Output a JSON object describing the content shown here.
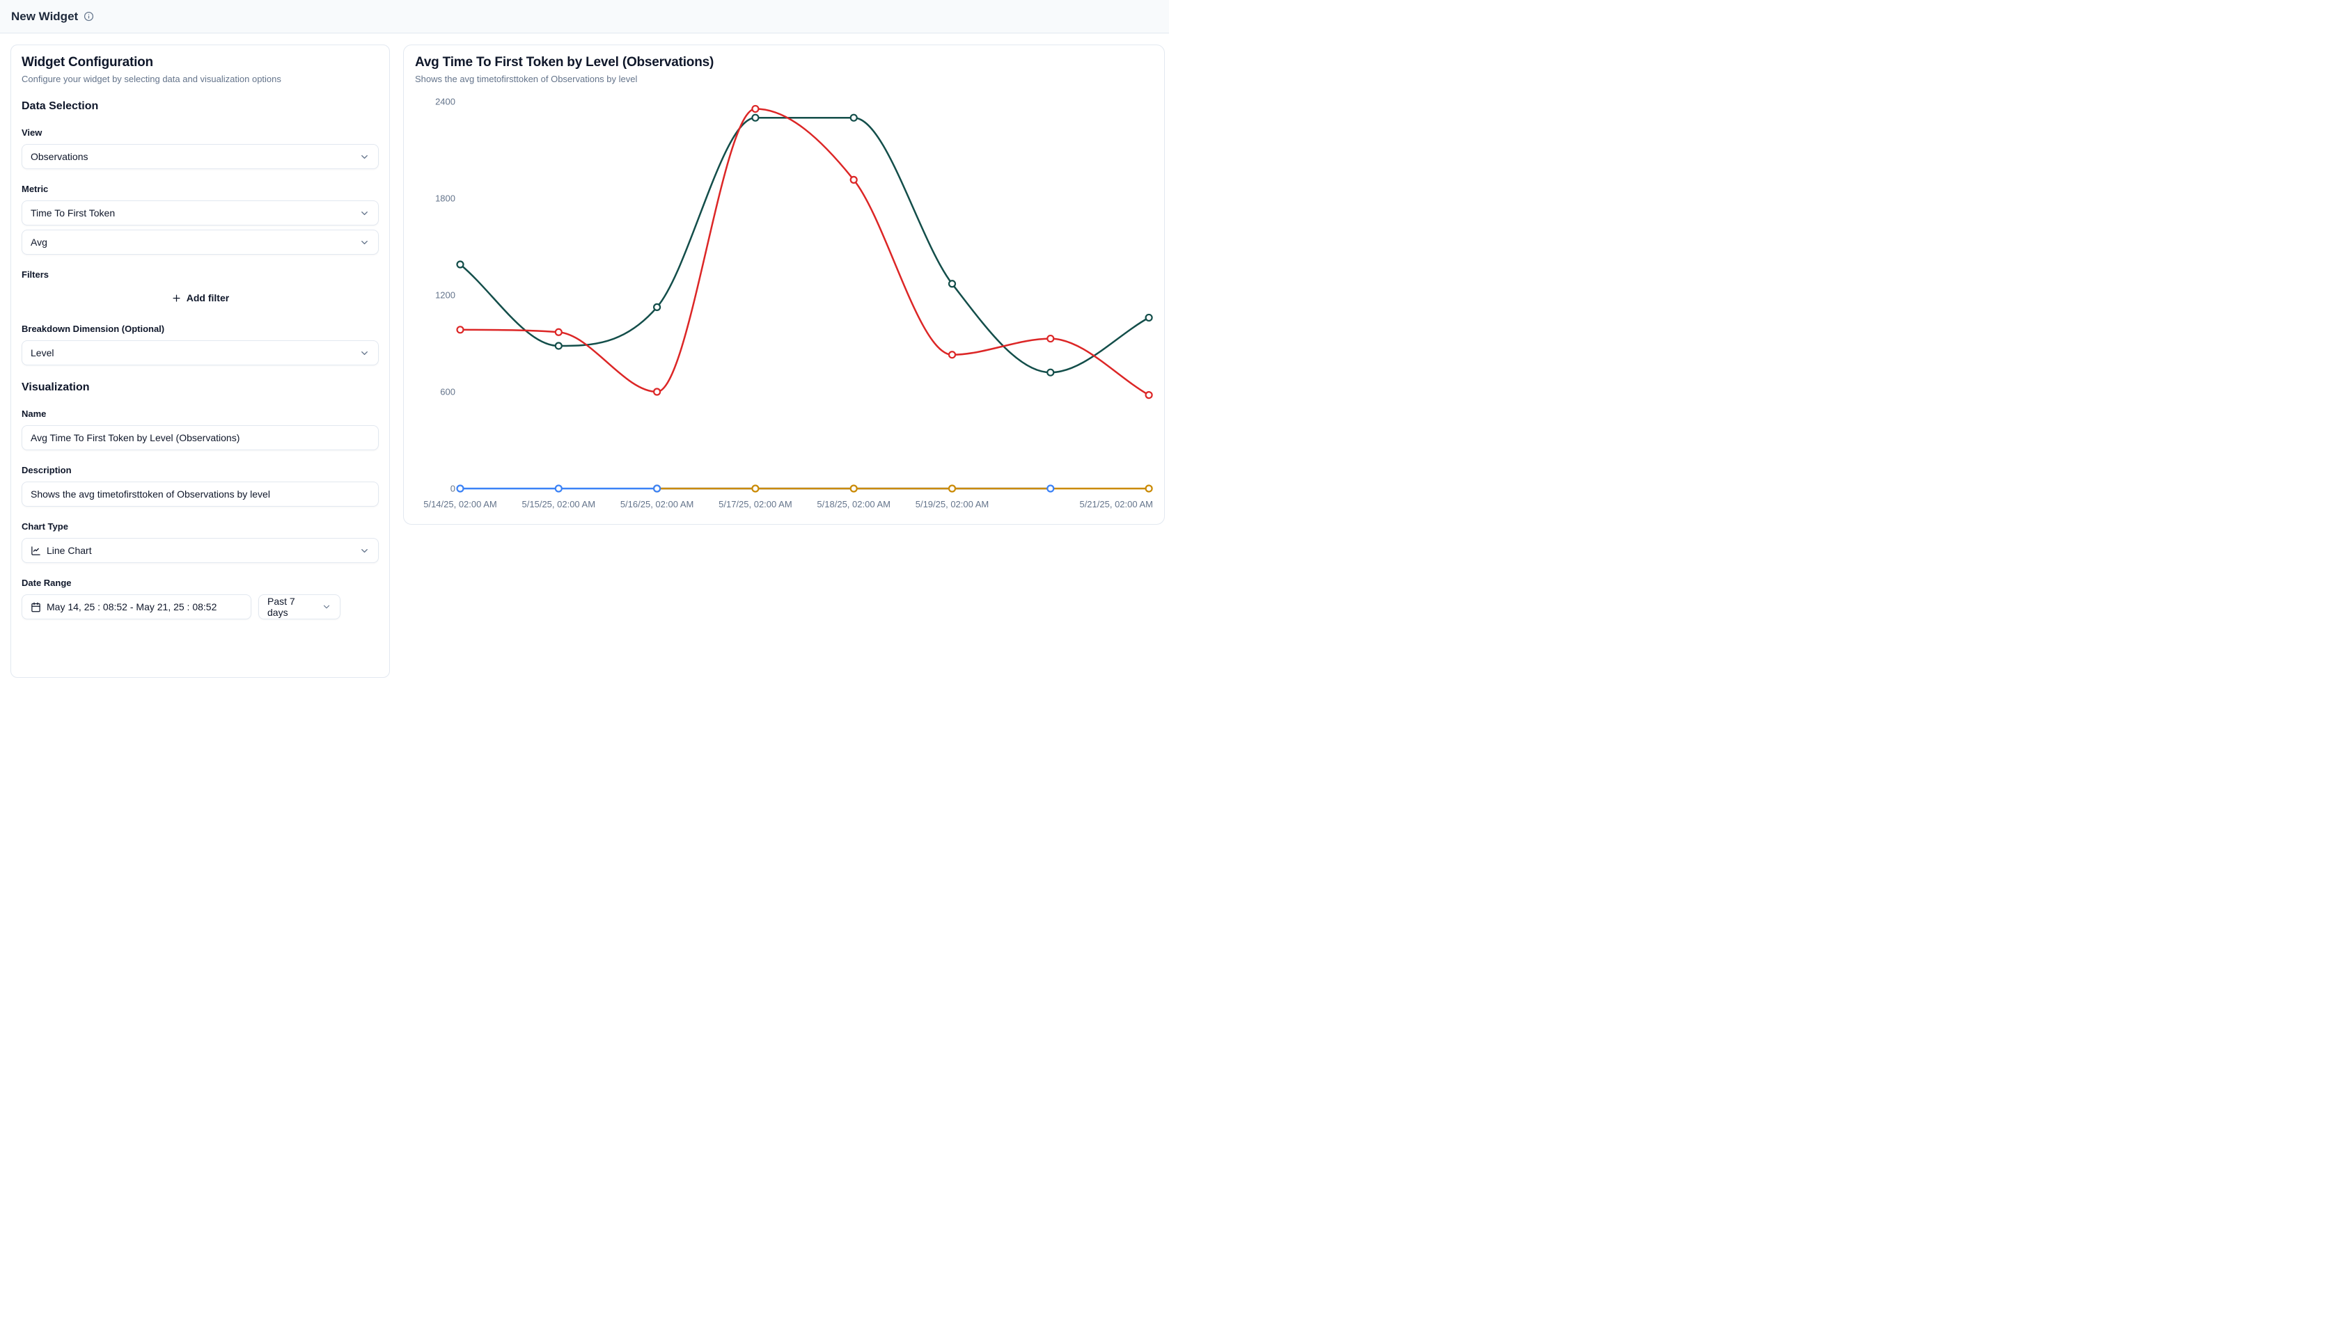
{
  "header": {
    "title": "New Widget"
  },
  "config": {
    "title": "Widget Configuration",
    "subtitle": "Configure your widget by selecting data and visualization options",
    "data_selection": {
      "heading": "Data Selection",
      "view_label": "View",
      "view_value": "Observations",
      "metric_label": "Metric",
      "metric_value": "Time To First Token",
      "aggregation_value": "Avg",
      "filters_label": "Filters",
      "add_filter_label": "Add filter",
      "breakdown_label": "Breakdown Dimension (Optional)",
      "breakdown_value": "Level"
    },
    "visualization": {
      "heading": "Visualization",
      "name_label": "Name",
      "name_value": "Avg Time To First Token by Level (Observations)",
      "description_label": "Description",
      "description_value": "Shows the avg timetofirsttoken of Observations by level",
      "chart_type_label": "Chart Type",
      "chart_type_value": "Line Chart",
      "date_range_label": "Date Range",
      "date_range_value": "May 14, 25 : 08:52 - May 21, 25 : 08:52",
      "date_preset_value": "Past 7 days"
    }
  },
  "preview": {
    "title": "Avg Time To First Token by Level (Observations)",
    "subtitle": "Shows the avg timetofirsttoken of Observations by level"
  },
  "chart_data": {
    "type": "line",
    "title": "Avg Time To First Token by Level (Observations)",
    "subtitle": "Shows the avg timetofirsttoken of Observations by level",
    "x_tick_labels": [
      "5/14/25, 02:00 AM",
      "5/15/25, 02:00 AM",
      "5/16/25, 02:00 AM",
      "5/17/25, 02:00 AM",
      "5/18/25, 02:00 AM",
      "5/19/25, 02:00 AM",
      "",
      "5/21/25, 02:00 AM"
    ],
    "y_ticks": [
      0,
      600,
      1200,
      1800,
      2400
    ],
    "ylim": [
      0,
      2400
    ],
    "grid": false,
    "legend": false,
    "axis_label_color": "#64748b",
    "series": [
      {
        "name": "series-teal",
        "color": "#134e4a",
        "values": [
          1390,
          885,
          1125,
          2300,
          2300,
          1270,
          720,
          1060
        ]
      },
      {
        "name": "series-red",
        "color": "#dc2626",
        "values": [
          985,
          970,
          600,
          2355,
          1915,
          830,
          930,
          580
        ]
      },
      {
        "name": "series-blue",
        "color": "#3b82f6",
        "values": [
          0,
          0,
          0,
          null,
          null,
          null,
          0,
          null
        ]
      },
      {
        "name": "series-orange",
        "color": "#ca8a04",
        "values": [
          null,
          null,
          0,
          0,
          0,
          0,
          null,
          0
        ]
      }
    ]
  }
}
